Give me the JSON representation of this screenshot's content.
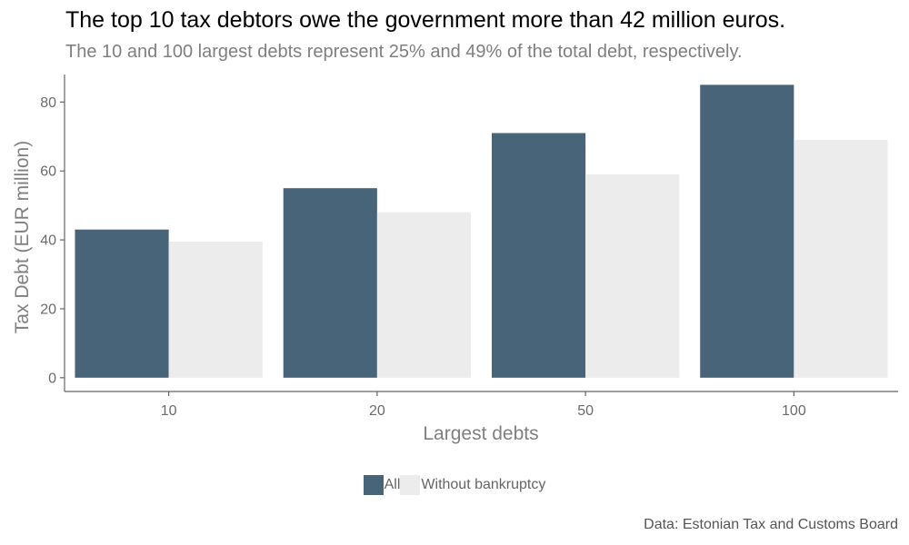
{
  "title": "The top 10 tax debtors owe the government more than 42 million euros.",
  "subtitle": "The 10 and 100 largest debts represent 25% and 49% of the total debt, respectively.",
  "caption": "Data: Estonian Tax and Customs Board",
  "colors": {
    "All": "#486478",
    "Without bankruptcy": "#ececec",
    "axis": "#666666"
  },
  "chart_data": {
    "type": "bar",
    "xlabel": "Largest debts",
    "ylabel": "Tax Debt (EUR million)",
    "categories": [
      "10",
      "20",
      "50",
      "100"
    ],
    "series": [
      {
        "name": "All",
        "values": [
          43,
          55,
          71,
          85
        ]
      },
      {
        "name": "Without bankruptcy",
        "values": [
          39.5,
          48,
          59,
          69
        ]
      }
    ],
    "yticks": [
      0,
      20,
      40,
      60,
      80
    ],
    "ylim": [
      -4,
      88
    ],
    "grid": false,
    "legend_position": "bottom"
  }
}
